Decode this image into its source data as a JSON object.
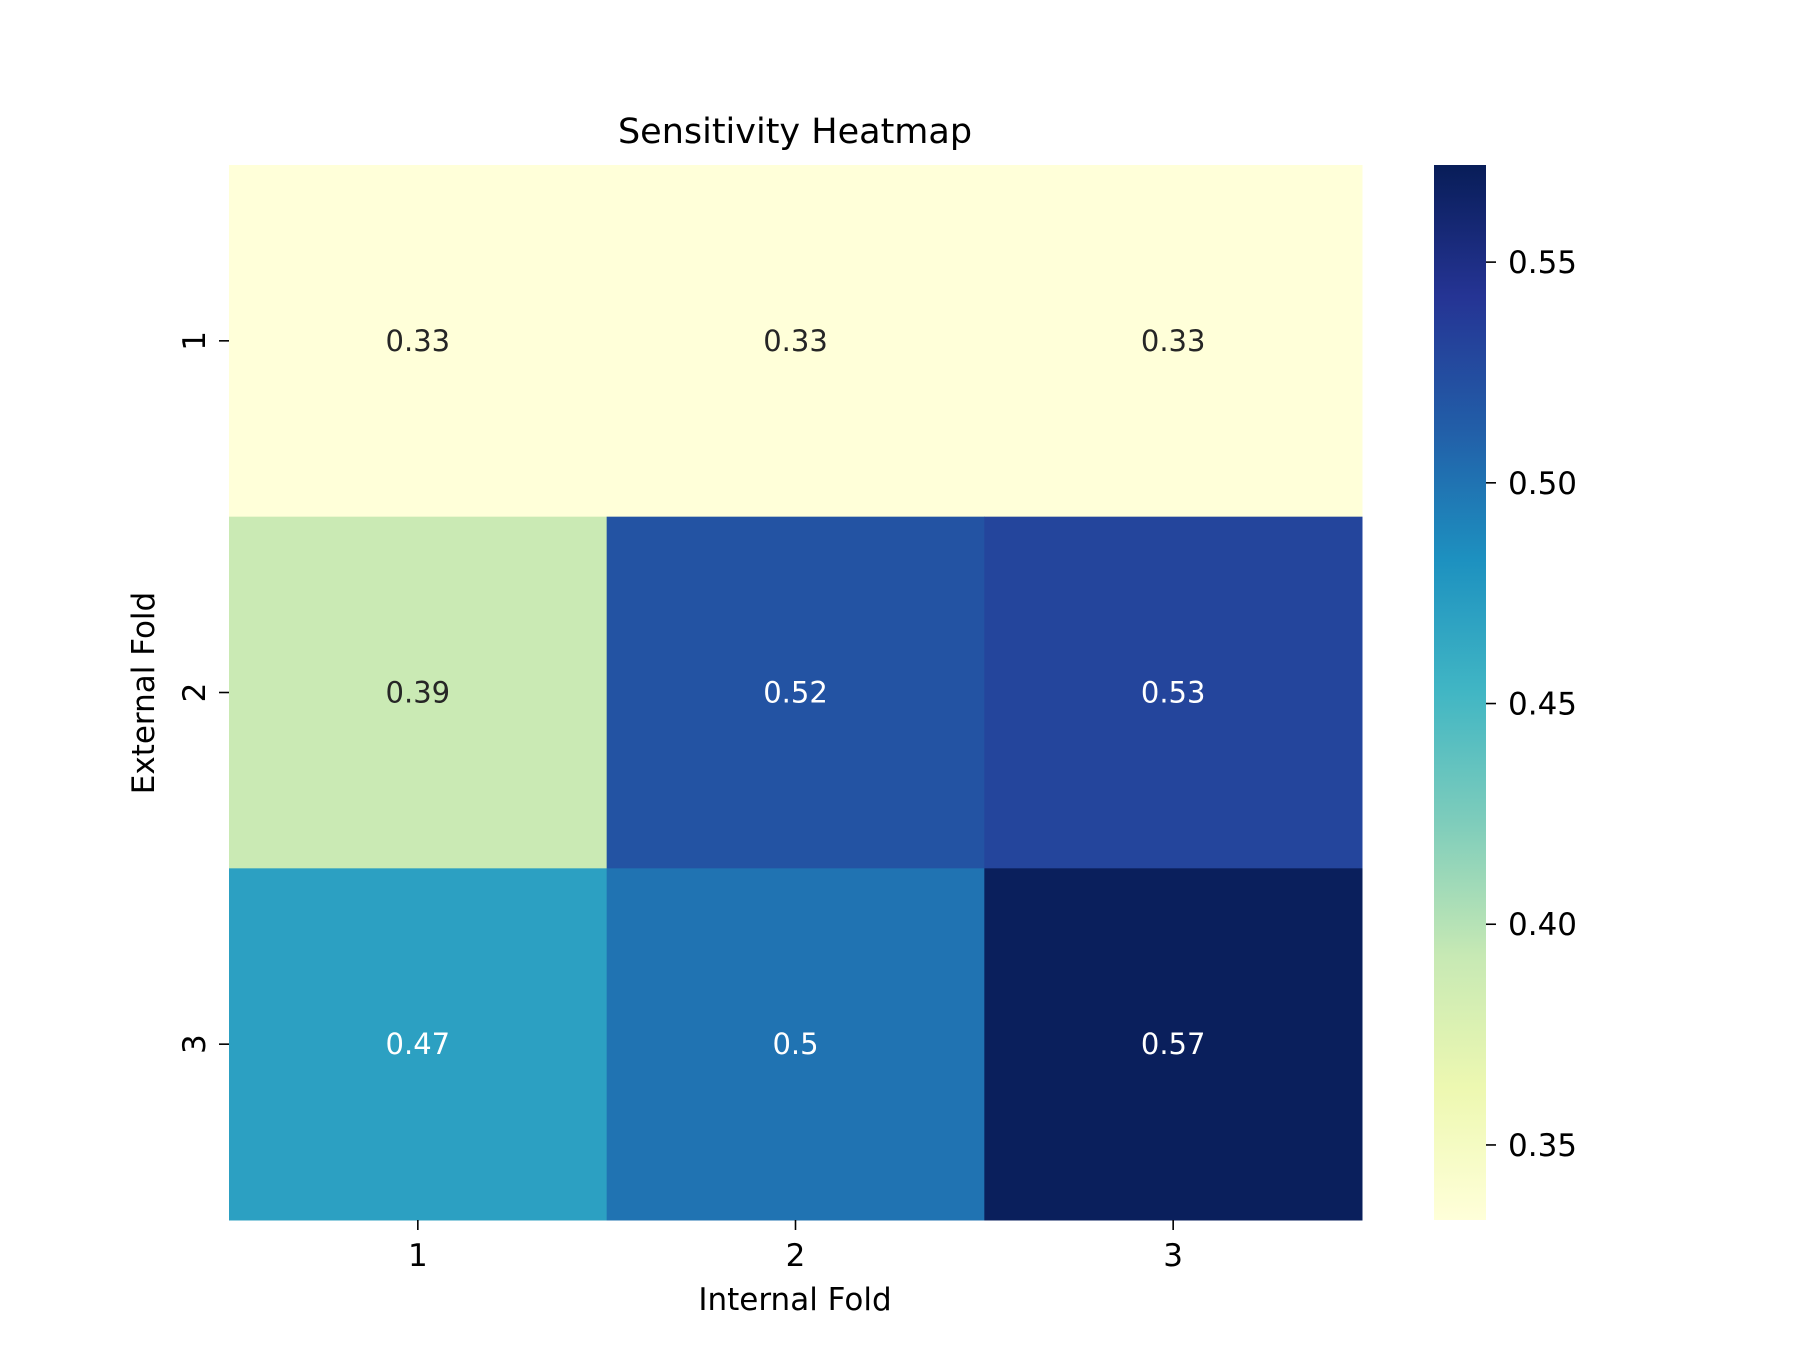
{
  "chart_data": {
    "type": "heatmap",
    "title": "Sensitivity Heatmap",
    "xlabel": "Internal Fold",
    "ylabel": "External Fold",
    "x_categories": [
      "1",
      "2",
      "3"
    ],
    "y_categories": [
      "1",
      "2",
      "3"
    ],
    "values": [
      [
        0.33,
        0.33,
        0.33
      ],
      [
        0.39,
        0.52,
        0.53
      ],
      [
        0.47,
        0.5,
        0.57
      ]
    ],
    "cell_labels": [
      [
        "0.33",
        "0.33",
        "0.33"
      ],
      [
        "0.39",
        "0.52",
        "0.53"
      ],
      [
        "0.47",
        "0.5",
        "0.57"
      ]
    ],
    "colormap": "YlGnBu",
    "colorbar": {
      "range": [
        0.333,
        0.572
      ],
      "ticks": [
        0.35,
        0.4,
        0.45,
        0.5,
        0.55
      ],
      "tick_labels": [
        "0.35",
        "0.40",
        "0.45",
        "0.50",
        "0.55"
      ],
      "position": "right"
    },
    "grid": false
  }
}
